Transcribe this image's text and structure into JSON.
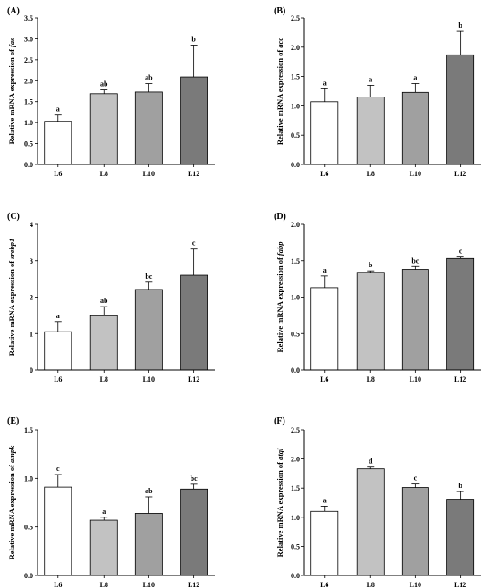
{
  "colors": {
    "L6": "#ffffff",
    "L8": "#c2c2c2",
    "L10": "#a0a0a0",
    "L12": "#7a7a7a",
    "axis": "#000000"
  },
  "chart_data": [
    {
      "type": "bar",
      "panel": "(A)",
      "ylabel_prefix": "Relative mRNA expression of ",
      "gene": "fas",
      "categories": [
        "L6",
        "L8",
        "L10",
        "L12"
      ],
      "values": [
        1.03,
        1.69,
        1.73,
        2.09
      ],
      "errors": [
        0.15,
        0.09,
        0.2,
        0.76
      ],
      "letters": [
        "a",
        "ab",
        "ab",
        "b"
      ],
      "ylim": [
        0,
        3.5
      ],
      "yticks": [
        0.0,
        0.5,
        1.0,
        1.5,
        2.0,
        2.5,
        3.0,
        3.5
      ],
      "ytick_labels": [
        "0.0",
        "0.5",
        "1.0",
        "1.5",
        "2.0",
        "2.5",
        "3.0",
        "3.5"
      ]
    },
    {
      "type": "bar",
      "panel": "(B)",
      "ylabel_prefix": "Relative mRNA expression of ",
      "gene": "acc",
      "categories": [
        "L6",
        "L8",
        "L10",
        "L12"
      ],
      "values": [
        1.07,
        1.15,
        1.23,
        1.87
      ],
      "errors": [
        0.22,
        0.2,
        0.15,
        0.4
      ],
      "letters": [
        "a",
        "a",
        "a",
        "b"
      ],
      "ylim": [
        0,
        2.5
      ],
      "yticks": [
        0.0,
        0.5,
        1.0,
        1.5,
        2.0,
        2.5
      ],
      "ytick_labels": [
        "0.0",
        "0.5",
        "1.0",
        "1.5",
        "2.0",
        "2.5"
      ]
    },
    {
      "type": "bar",
      "panel": "(C)",
      "ylabel_prefix": "Relative mRNA expression of ",
      "gene": "srebp1",
      "categories": [
        "L6",
        "L8",
        "L10",
        "L12"
      ],
      "values": [
        1.05,
        1.49,
        2.21,
        2.6
      ],
      "errors": [
        0.28,
        0.25,
        0.2,
        0.72
      ],
      "letters": [
        "a",
        "ab",
        "bc",
        "c"
      ],
      "ylim": [
        0,
        4
      ],
      "yticks": [
        0,
        1,
        2,
        3,
        4
      ],
      "ytick_labels": [
        "0",
        "1",
        "2",
        "3",
        "4"
      ]
    },
    {
      "type": "bar",
      "panel": "(D)",
      "ylabel_prefix": "Relative mRNA expression of ",
      "gene": "fabp",
      "categories": [
        "L6",
        "L8",
        "L10",
        "L12"
      ],
      "values": [
        1.13,
        1.34,
        1.38,
        1.53
      ],
      "errors": [
        0.16,
        0.02,
        0.04,
        0.02
      ],
      "letters": [
        "a",
        "b",
        "bc",
        "c"
      ],
      "ylim": [
        0,
        2.0
      ],
      "yticks": [
        0.0,
        0.5,
        1.0,
        1.5,
        2.0
      ],
      "ytick_labels": [
        "0.0",
        "0.5",
        "1.0",
        "1.5",
        "2.0"
      ]
    },
    {
      "type": "bar",
      "panel": "(E)",
      "ylabel_prefix": "Relative mRNA expression of ",
      "gene": "ampk",
      "categories": [
        "L6",
        "L8",
        "L10",
        "L12"
      ],
      "values": [
        0.91,
        0.57,
        0.64,
        0.89
      ],
      "errors": [
        0.13,
        0.03,
        0.17,
        0.05
      ],
      "letters": [
        "c",
        "a",
        "ab",
        "bc"
      ],
      "ylim": [
        0,
        1.5
      ],
      "yticks": [
        0.0,
        0.5,
        1.0,
        1.5
      ],
      "ytick_labels": [
        "0.0",
        "0.5",
        "1.0",
        "1.5"
      ]
    },
    {
      "type": "bar",
      "panel": "(F)",
      "ylabel_prefix": "Relative mRNA expression of ",
      "gene": "atgl",
      "categories": [
        "L6",
        "L8",
        "L10",
        "L12"
      ],
      "values": [
        1.1,
        1.83,
        1.51,
        1.31
      ],
      "errors": [
        0.09,
        0.03,
        0.06,
        0.13
      ],
      "letters": [
        "a",
        "d",
        "c",
        "b"
      ],
      "ylim": [
        0,
        2.5
      ],
      "yticks": [
        0.0,
        0.5,
        1.0,
        1.5,
        2.0,
        2.5
      ],
      "ytick_labels": [
        "0.0",
        "0.5",
        "1.0",
        "1.5",
        "2.0",
        "2.5"
      ]
    }
  ]
}
